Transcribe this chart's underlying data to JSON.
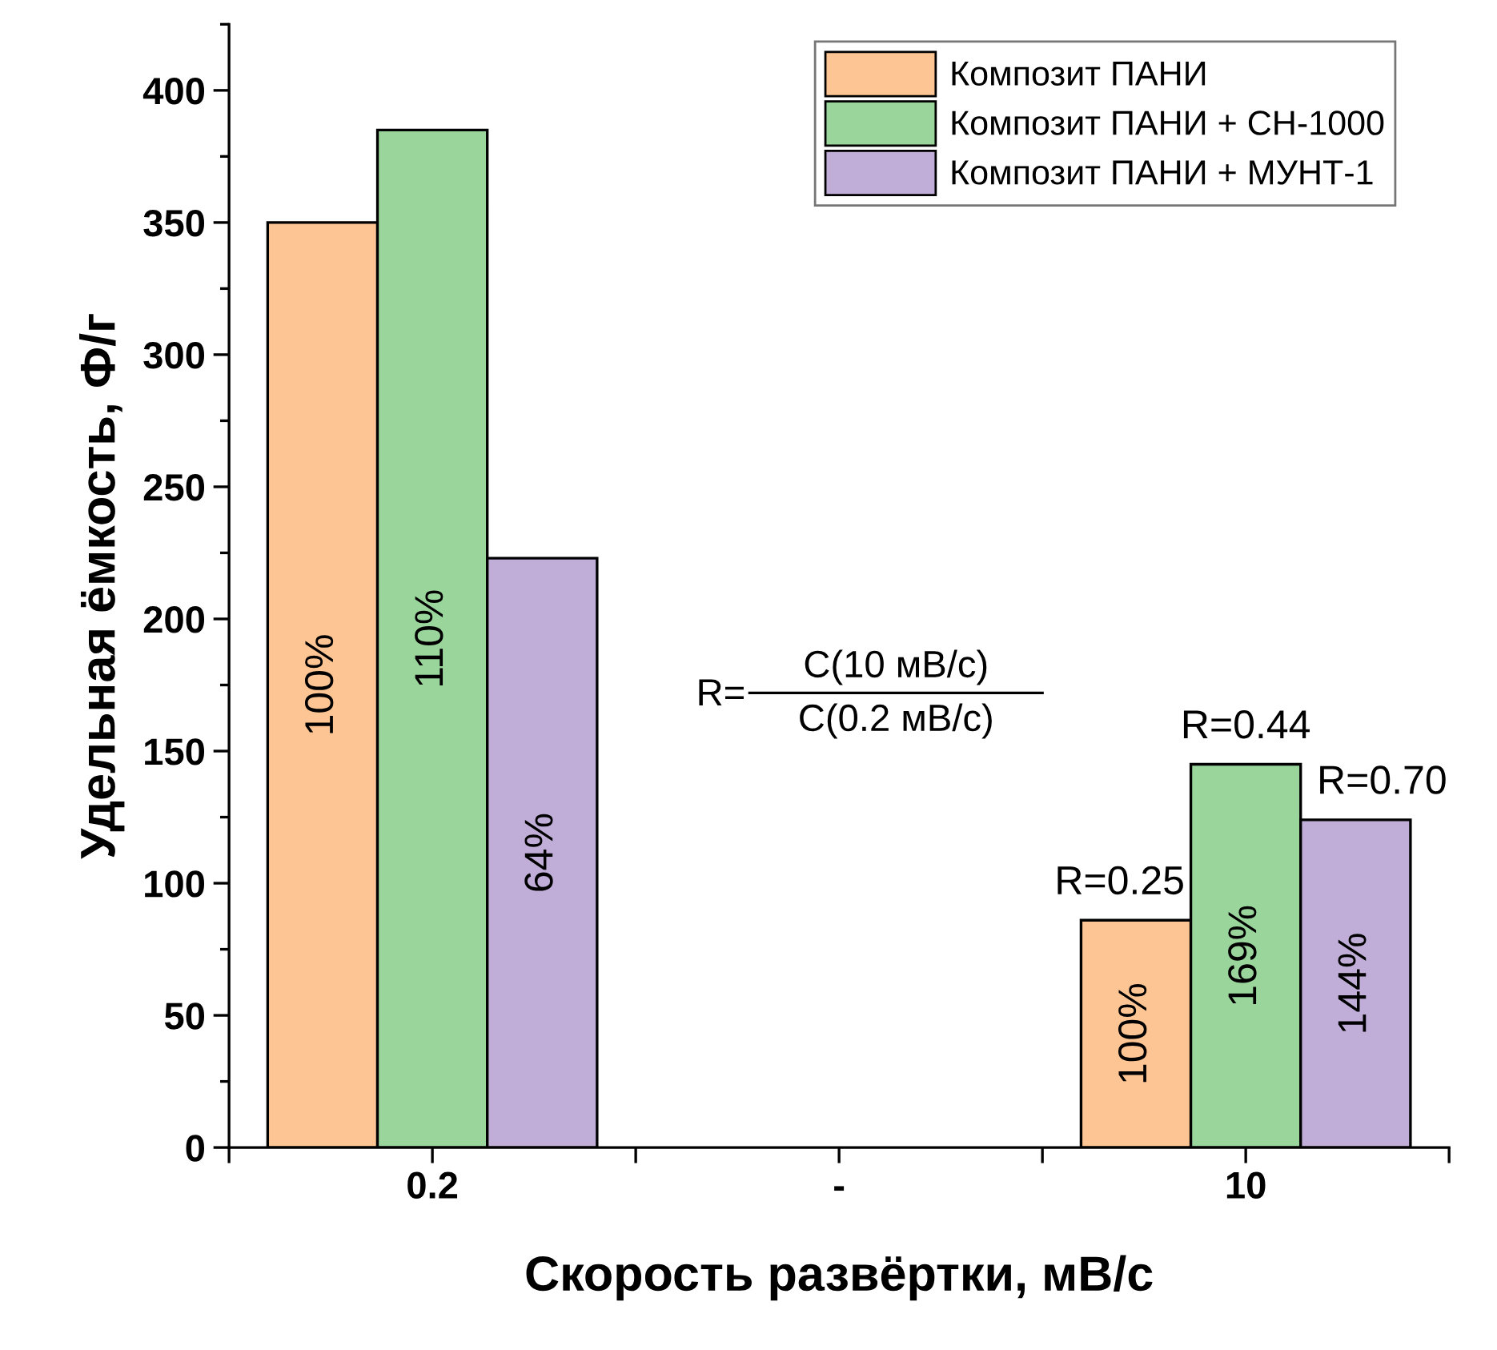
{
  "chart_data": {
    "type": "bar",
    "xlabel": "Скорость развёртки, мВ/с",
    "ylabel": "Удельная ёмкость, Ф/г",
    "categories": [
      "0.2",
      "-",
      "10"
    ],
    "series": [
      {
        "name": "Композит ПАНИ",
        "color": "#fdc593",
        "values": [
          350,
          null,
          86
        ]
      },
      {
        "name": "Композит ПАНИ + СН-1000",
        "color": "#9ad59c",
        "values": [
          385,
          null,
          145
        ]
      },
      {
        "name": "Композит ПАНИ + МУНТ-1",
        "color": "#c0aed8",
        "values": [
          223,
          null,
          124
        ]
      }
    ],
    "ylim": [
      0,
      425
    ],
    "yticks": [
      0,
      50,
      100,
      150,
      200,
      250,
      300,
      350,
      400
    ],
    "legend": "top right",
    "grid": false,
    "annotations": [
      "R=",
      "C(10 мВ/с)",
      "C(0.2 мВ/с)",
      "100%",
      "110%",
      "64%",
      "100%",
      "169%",
      "144%",
      "R=0.25",
      "R=0.44",
      "R=0.70"
    ]
  }
}
